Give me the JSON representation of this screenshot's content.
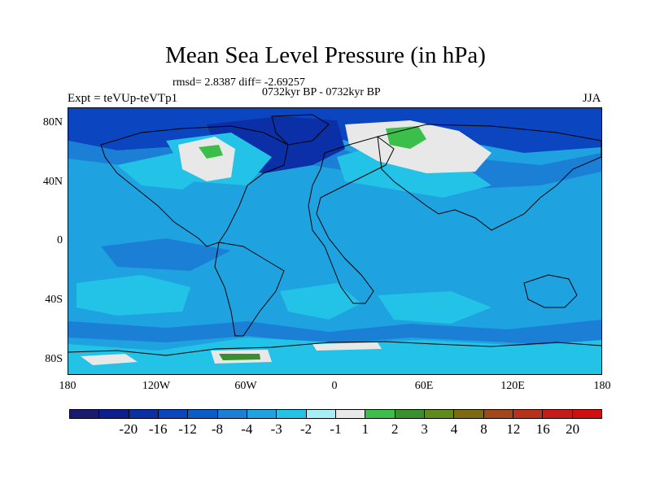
{
  "title": "Mean Sea Level Pressure (in hPa)",
  "stats": "rmsd= 2.8387 diff= -2.69257",
  "period": "0732kyr BP - 0732kyr BP",
  "experiment": "Expt = teVUp-teVTp1",
  "season": "JJA",
  "map": {
    "projection": "cylindrical-equidistant",
    "lon_range": [
      -180,
      180
    ],
    "lat_range": [
      -90,
      90
    ],
    "background_color": "#1fa3e0",
    "lat_labels": [
      "80N",
      "40N",
      "0",
      "40S",
      "80S"
    ],
    "lon_labels": [
      "180",
      "120W",
      "60W",
      "0",
      "60E",
      "120E",
      "180"
    ]
  },
  "colorbar": {
    "colors": [
      "#1a1a6e",
      "#0d1f8f",
      "#0a2fa6",
      "#0b45bf",
      "#0a5cc8",
      "#1b7fd6",
      "#1fa3e0",
      "#22c3e6",
      "#a8eef5",
      "#e8e8e8",
      "#3bbf4a",
      "#3a8f2e",
      "#5e8a1e",
      "#7f6a14",
      "#a2471a",
      "#b8321b",
      "#c41d17",
      "#d10e10"
    ],
    "labels": [
      "-20",
      "-16",
      "-12",
      "-8",
      "-4",
      "-3",
      "-2",
      "-1",
      "1",
      "2",
      "3",
      "4",
      "8",
      "12",
      "16",
      "20"
    ]
  }
}
